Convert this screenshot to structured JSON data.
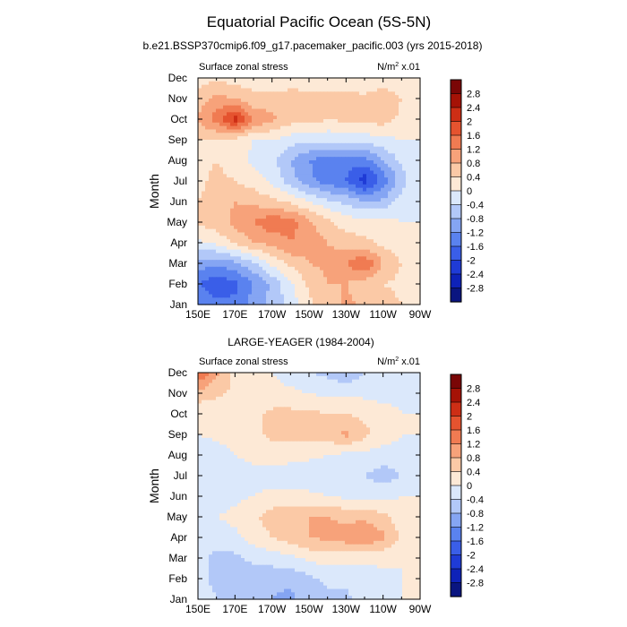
{
  "figure": {
    "title": "Equatorial Pacific Ocean (5S-5N)",
    "subtitle": "b.e21.BSSP370cmip6.f09_g17.pacemaker_pacific.003 (yrs 2015-2018)"
  },
  "chart_data": [
    {
      "type": "heatmap",
      "panel_title": "",
      "left_label": "Surface zonal stress",
      "right_label": "N/m",
      "right_label_sup": "2",
      "right_label_suffix": " x.01",
      "ylabel": "Month",
      "xlabel": "",
      "xticks": [
        "150E",
        "170E",
        "170W",
        "150W",
        "130W",
        "110W",
        "90W"
      ],
      "xlim": [
        150,
        270
      ],
      "yticks": [
        "Jan",
        "Feb",
        "Mar",
        "Apr",
        "May",
        "Jun",
        "Jul",
        "Aug",
        "Sep",
        "Oct",
        "Nov",
        "Dec"
      ],
      "ylim": [
        1,
        12
      ],
      "x": [
        150,
        160,
        170,
        180,
        190,
        200,
        210,
        220,
        230,
        240,
        250,
        260,
        270
      ],
      "y": [
        "Jan",
        "Feb",
        "Mar",
        "Apr",
        "May",
        "Jun",
        "Jul",
        "Aug",
        "Sep",
        "Oct",
        "Nov",
        "Dec"
      ],
      "z": [
        [
          -1.2,
          -1.5,
          -1.5,
          -1.0,
          -0.7,
          -0.2,
          0.3,
          0.6,
          0.9,
          0.7,
          0.6,
          0.4,
          0.2
        ],
        [
          -1.6,
          -1.9,
          -1.7,
          -1.2,
          -0.7,
          -0.1,
          0.5,
          0.8,
          0.8,
          0.6,
          0.4,
          0.3,
          0.1
        ],
        [
          -1.0,
          -1.1,
          -0.9,
          -0.5,
          0.1,
          0.5,
          0.8,
          0.9,
          1.2,
          1.6,
          0.8,
          0.4,
          0.1
        ],
        [
          -0.1,
          0.1,
          0.5,
          0.8,
          0.9,
          1.2,
          1.0,
          0.8,
          0.6,
          0.5,
          0.3,
          0.1,
          0.0
        ],
        [
          0.5,
          0.6,
          0.9,
          1.2,
          1.5,
          1.4,
          0.9,
          0.5,
          0.2,
          0.2,
          0.2,
          0.0,
          0.0
        ],
        [
          0.4,
          0.6,
          0.8,
          0.7,
          0.5,
          0.3,
          0.0,
          -0.3,
          -0.5,
          -0.8,
          -0.7,
          -0.2,
          0.0
        ],
        [
          0.3,
          0.5,
          0.4,
          0.2,
          -0.1,
          -0.6,
          -1.1,
          -1.4,
          -1.6,
          -2.2,
          -1.5,
          -0.6,
          0.0
        ],
        [
          0.3,
          0.4,
          0.2,
          -0.1,
          -0.3,
          -0.8,
          -1.2,
          -1.4,
          -1.5,
          -1.4,
          -0.8,
          -0.3,
          0.0
        ],
        [
          0.4,
          0.4,
          0.3,
          0.0,
          0.0,
          -0.2,
          -0.3,
          -0.3,
          -0.2,
          -0.2,
          -0.1,
          0.0,
          0.0
        ],
        [
          0.8,
          1.4,
          2.2,
          1.2,
          0.9,
          0.6,
          0.6,
          0.4,
          0.5,
          0.5,
          0.6,
          0.3,
          0.1
        ],
        [
          0.6,
          0.9,
          0.8,
          0.5,
          0.5,
          0.7,
          0.6,
          0.5,
          0.6,
          0.5,
          0.7,
          0.4,
          0.1
        ],
        [
          0.2,
          0.3,
          0.2,
          0.2,
          0.1,
          0.0,
          0.1,
          0.1,
          0.0,
          0.0,
          0.1,
          0.1,
          0.0
        ]
      ],
      "colorbar_labels": [
        "2.8",
        "2.4",
        "2",
        "1.6",
        "1.2",
        "0.8",
        "0.4",
        "0",
        "-0.4",
        "-0.8",
        "-1.2",
        "-1.6",
        "-2",
        "-2.4",
        "-2.8"
      ]
    },
    {
      "type": "heatmap",
      "panel_title": "LARGE-YEAGER (1984-2004)",
      "left_label": "Surface zonal stress",
      "right_label": "N/m",
      "right_label_sup": "2",
      "right_label_suffix": " x.01",
      "ylabel": "Month",
      "xlabel": "",
      "xticks": [
        "150E",
        "170E",
        "170W",
        "150W",
        "130W",
        "110W",
        "90W"
      ],
      "xlim": [
        150,
        270
      ],
      "yticks": [
        "Jan",
        "Feb",
        "Mar",
        "Apr",
        "May",
        "Jun",
        "Jul",
        "Aug",
        "Sep",
        "Oct",
        "Nov",
        "Dec"
      ],
      "ylim": [
        1,
        12
      ],
      "x": [
        150,
        160,
        170,
        180,
        190,
        200,
        210,
        220,
        230,
        240,
        250,
        260,
        270
      ],
      "y": [
        "Jan",
        "Feb",
        "Mar",
        "Apr",
        "May",
        "Jun",
        "Jul",
        "Aug",
        "Sep",
        "Oct",
        "Nov",
        "Dec"
      ],
      "z": [
        [
          -0.2,
          -0.4,
          -0.5,
          -0.7,
          -0.8,
          -0.9,
          -0.6,
          -0.5,
          -0.5,
          -0.2,
          -0.1,
          0.0,
          0.0
        ],
        [
          -0.3,
          -0.5,
          -0.6,
          -0.6,
          -0.7,
          -0.7,
          -0.5,
          -0.3,
          -0.3,
          -0.2,
          -0.1,
          0.0,
          0.0
        ],
        [
          -0.3,
          -0.5,
          -0.5,
          -0.3,
          -0.2,
          -0.1,
          0.1,
          0.2,
          0.2,
          0.1,
          0.1,
          0.0,
          0.0
        ],
        [
          -0.2,
          -0.2,
          -0.1,
          0.2,
          0.4,
          0.6,
          0.8,
          0.9,
          1.0,
          1.2,
          0.9,
          0.3,
          0.0
        ],
        [
          -0.1,
          0.0,
          0.1,
          0.3,
          0.6,
          0.7,
          0.8,
          0.8,
          0.7,
          0.7,
          0.5,
          0.2,
          0.0
        ],
        [
          -0.2,
          -0.2,
          -0.1,
          0.0,
          0.1,
          0.1,
          0.1,
          0.0,
          -0.1,
          -0.1,
          -0.1,
          0.0,
          0.0
        ],
        [
          -0.4,
          -0.4,
          -0.2,
          -0.1,
          -0.2,
          -0.3,
          -0.3,
          -0.2,
          -0.3,
          -0.4,
          -0.6,
          -0.4,
          0.0
        ],
        [
          -0.3,
          -0.2,
          0.0,
          0.1,
          0.2,
          0.2,
          0.1,
          0.0,
          -0.1,
          -0.1,
          -0.2,
          -0.1,
          0.0
        ],
        [
          0.0,
          0.1,
          0.2,
          0.3,
          0.5,
          0.5,
          0.6,
          0.6,
          0.9,
          0.5,
          0.2,
          0.0,
          0.0
        ],
        [
          0.0,
          0.1,
          0.2,
          0.3,
          0.5,
          0.5,
          0.5,
          0.4,
          0.4,
          0.3,
          0.2,
          0.0,
          0.0
        ],
        [
          0.7,
          0.5,
          0.3,
          0.2,
          0.1,
          0.1,
          0.0,
          -0.1,
          -0.1,
          -0.1,
          -0.2,
          -0.1,
          0.0
        ],
        [
          1.6,
          0.9,
          0.3,
          0.1,
          0.0,
          -0.2,
          -0.4,
          -0.5,
          -0.7,
          -0.4,
          -0.1,
          0.0,
          0.0
        ]
      ],
      "colorbar_labels": [
        "2.8",
        "2.4",
        "2",
        "1.6",
        "1.2",
        "0.8",
        "0.4",
        "0",
        "-0.4",
        "-0.8",
        "-1.2",
        "-1.6",
        "-2",
        "-2.4",
        "-2.8"
      ]
    }
  ],
  "colormap": {
    "levels": [
      -2.8,
      -2.4,
      -2.0,
      -1.6,
      -1.2,
      -0.8,
      -0.4,
      0.0,
      0.4,
      0.8,
      1.2,
      1.6,
      2.0,
      2.4,
      2.8
    ],
    "colors": [
      "#0a1580",
      "#0e22b8",
      "#1f3bd6",
      "#3a5ee8",
      "#5a82ef",
      "#85a5f3",
      "#b2c8f8",
      "#dbe8fb",
      "#fde9d6",
      "#fbc9a6",
      "#f7a27a",
      "#f07b52",
      "#e5532f",
      "#cd2e15",
      "#a51206",
      "#7a0606"
    ]
  }
}
